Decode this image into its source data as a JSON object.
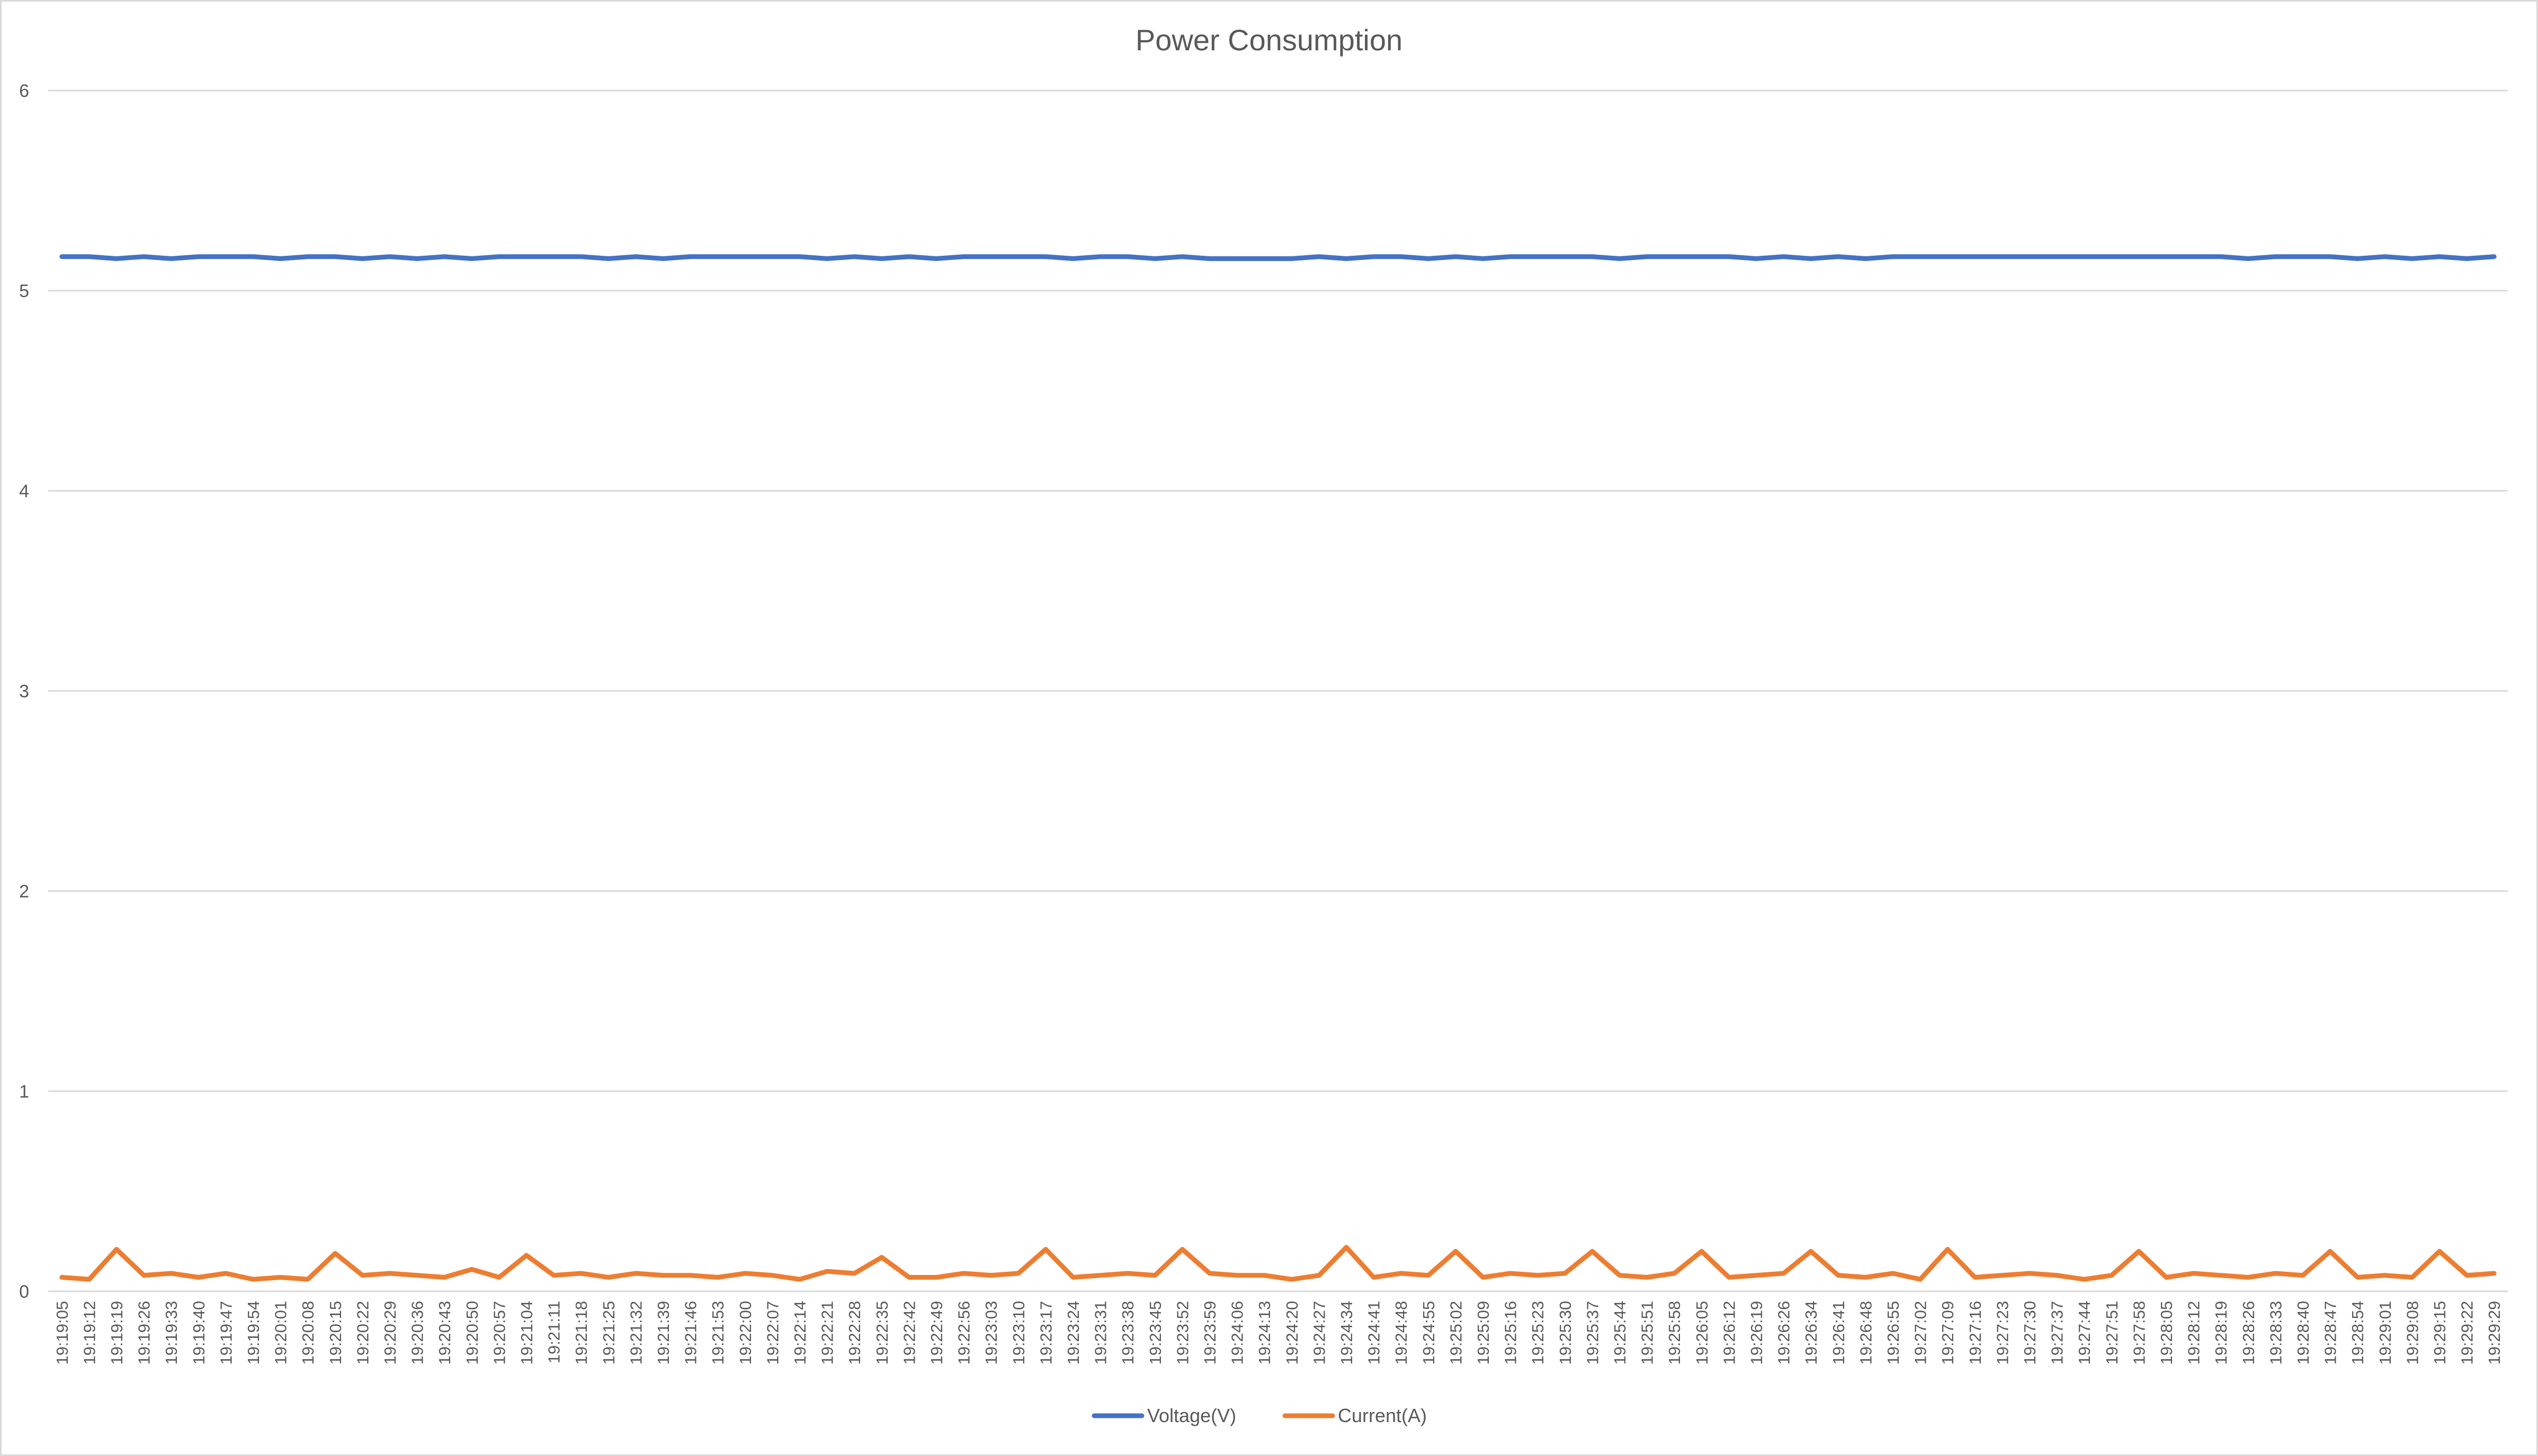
{
  "chart_data": {
    "type": "line",
    "title": "Power Consumption",
    "xlabel": "",
    "ylabel": "",
    "ylim": [
      0,
      6
    ],
    "yticks": [
      0,
      1,
      2,
      3,
      4,
      5,
      6
    ],
    "grid": "horizontal",
    "legend_position": "bottom",
    "x_tick_labels": [
      "19:19:05",
      "19:19:12",
      "19:19:19",
      "19:19:26",
      "19:19:33",
      "19:19:40",
      "19:19:47",
      "19:19:54",
      "19:20:01",
      "19:20:08",
      "19:20:15",
      "19:20:22",
      "19:20:29",
      "19:20:36",
      "19:20:43",
      "19:20:50",
      "19:20:57",
      "19:21:04",
      "19:21:11",
      "19:21:18",
      "19:21:25",
      "19:21:32",
      "19:21:39",
      "19:21:46",
      "19:21:53",
      "19:22:00",
      "19:22:07",
      "19:22:14",
      "19:22:21",
      "19:22:28",
      "19:22:35",
      "19:22:42",
      "19:22:49",
      "19:22:56",
      "19:23:03",
      "19:23:10",
      "19:23:17",
      "19:23:24",
      "19:23:31",
      "19:23:38",
      "19:23:45",
      "19:23:52",
      "19:23:59",
      "19:24:06",
      "19:24:13",
      "19:24:20",
      "19:24:27",
      "19:24:34",
      "19:24:41",
      "19:24:48",
      "19:24:55",
      "19:25:02",
      "19:25:09",
      "19:25:16",
      "19:25:23",
      "19:25:30",
      "19:25:37",
      "19:25:44",
      "19:25:51",
      "19:25:58",
      "19:26:05",
      "19:26:12",
      "19:26:19",
      "19:26:26",
      "19:26:34",
      "19:26:41",
      "19:26:48",
      "19:26:55",
      "19:27:02",
      "19:27:09",
      "19:27:16",
      "19:27:23",
      "19:27:30",
      "19:27:37",
      "19:27:44",
      "19:27:51",
      "19:27:58",
      "19:28:05",
      "19:28:12",
      "19:28:19",
      "19:28:26",
      "19:28:33",
      "19:28:40",
      "19:28:47",
      "19:28:54",
      "19:29:01",
      "19:29:08",
      "19:29:15",
      "19:29:22",
      "19:29:29"
    ],
    "series": [
      {
        "name": "Voltage(V)",
        "color": "#4472c4",
        "values": [
          5.17,
          5.17,
          5.16,
          5.17,
          5.16,
          5.17,
          5.17,
          5.17,
          5.16,
          5.17,
          5.17,
          5.16,
          5.17,
          5.16,
          5.17,
          5.16,
          5.17,
          5.17,
          5.17,
          5.17,
          5.16,
          5.17,
          5.16,
          5.17,
          5.17,
          5.17,
          5.17,
          5.17,
          5.16,
          5.17,
          5.16,
          5.17,
          5.16,
          5.17,
          5.17,
          5.17,
          5.17,
          5.16,
          5.17,
          5.17,
          5.16,
          5.17,
          5.16,
          5.16,
          5.16,
          5.16,
          5.17,
          5.16,
          5.17,
          5.17,
          5.16,
          5.17,
          5.16,
          5.17,
          5.17,
          5.17,
          5.17,
          5.16,
          5.17,
          5.17,
          5.17,
          5.17,
          5.16,
          5.17,
          5.16,
          5.17,
          5.16,
          5.17,
          5.17,
          5.17,
          5.17,
          5.17,
          5.17,
          5.17,
          5.17,
          5.17,
          5.17,
          5.17,
          5.17,
          5.17,
          5.16,
          5.17,
          5.17,
          5.17,
          5.16,
          5.17,
          5.16,
          5.17,
          5.16,
          5.17
        ]
      },
      {
        "name": "Current(A)",
        "color": "#ed7d31",
        "values": [
          0.07,
          0.06,
          0.21,
          0.08,
          0.09,
          0.07,
          0.09,
          0.06,
          0.07,
          0.06,
          0.19,
          0.08,
          0.09,
          0.08,
          0.07,
          0.11,
          0.07,
          0.18,
          0.08,
          0.09,
          0.07,
          0.09,
          0.08,
          0.08,
          0.07,
          0.09,
          0.08,
          0.06,
          0.1,
          0.09,
          0.17,
          0.07,
          0.07,
          0.09,
          0.08,
          0.09,
          0.21,
          0.07,
          0.08,
          0.09,
          0.08,
          0.21,
          0.09,
          0.08,
          0.08,
          0.06,
          0.08,
          0.22,
          0.07,
          0.09,
          0.08,
          0.2,
          0.07,
          0.09,
          0.08,
          0.09,
          0.2,
          0.08,
          0.07,
          0.09,
          0.2,
          0.07,
          0.08,
          0.09,
          0.2,
          0.08,
          0.07,
          0.09,
          0.06,
          0.21,
          0.07,
          0.08,
          0.09,
          0.08,
          0.06,
          0.08,
          0.2,
          0.07,
          0.09,
          0.08,
          0.07,
          0.09,
          0.08,
          0.2,
          0.07,
          0.08,
          0.07,
          0.2,
          0.08,
          0.09
        ]
      }
    ]
  }
}
